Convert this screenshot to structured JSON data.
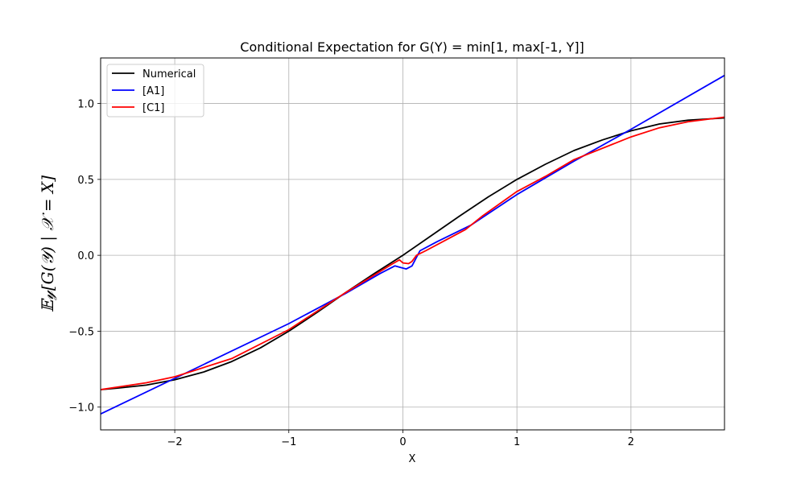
{
  "chart_data": {
    "type": "line",
    "title": "Conditional Expectation for G(Y) = min[1, max[-1, Y]]",
    "xlabel": "X",
    "ylabel": "𝔼𝓎[G(𝒴) | 𝒳 = X]",
    "xlim": [
      -2.65,
      2.82
    ],
    "ylim": [
      -1.15,
      1.3
    ],
    "grid": true,
    "legend_position": "top-left",
    "x_ticks": [
      -2,
      -1,
      0,
      1,
      2
    ],
    "x_tick_labels": [
      "−2",
      "−1",
      "0",
      "1",
      "2"
    ],
    "y_ticks": [
      -1.0,
      -0.5,
      0.0,
      0.5,
      1.0
    ],
    "y_tick_labels": [
      "−1.0",
      "−0.5",
      "0.0",
      "0.5",
      "1.0"
    ],
    "series": [
      {
        "name": "Numerical",
        "color": "#000000",
        "x": [
          -2.65,
          -2.5,
          -2.25,
          -2.0,
          -1.75,
          -1.5,
          -1.25,
          -1.0,
          -0.75,
          -0.5,
          -0.25,
          0.0,
          0.25,
          0.5,
          0.75,
          1.0,
          1.25,
          1.5,
          1.75,
          2.0,
          2.25,
          2.5,
          2.82
        ],
        "y": [
          -0.885,
          -0.875,
          -0.855,
          -0.82,
          -0.77,
          -0.7,
          -0.61,
          -0.5,
          -0.375,
          -0.245,
          -0.12,
          0.0,
          0.13,
          0.26,
          0.385,
          0.5,
          0.6,
          0.69,
          0.76,
          0.82,
          0.865,
          0.89,
          0.905
        ]
      },
      {
        "name": "[A1]",
        "color": "#0000ff",
        "x": [
          -2.65,
          -1.0,
          -0.5,
          -0.2,
          -0.07,
          -0.02,
          0.03,
          0.08,
          0.15,
          0.3,
          0.6,
          1.0,
          1.5,
          2.0,
          2.82
        ],
        "y": [
          -1.045,
          -0.45,
          -0.25,
          -0.12,
          -0.07,
          -0.08,
          -0.09,
          -0.07,
          0.03,
          0.09,
          0.2,
          0.4,
          0.62,
          0.83,
          1.185
        ]
      },
      {
        "name": "[C1]",
        "color": "#ff0000",
        "x": [
          -2.65,
          -2.25,
          -2.0,
          -1.5,
          -1.0,
          -0.5,
          -0.25,
          -0.1,
          -0.03,
          0.0,
          0.05,
          0.08,
          0.12,
          0.2,
          0.4,
          0.55,
          0.7,
          1.0,
          1.25,
          1.5,
          2.0,
          2.25,
          2.5,
          2.82
        ],
        "y": [
          -0.885,
          -0.84,
          -0.8,
          -0.68,
          -0.49,
          -0.245,
          -0.13,
          -0.06,
          -0.03,
          -0.05,
          -0.055,
          -0.04,
          0.0,
          0.03,
          0.11,
          0.17,
          0.26,
          0.42,
          0.52,
          0.63,
          0.78,
          0.84,
          0.88,
          0.91
        ]
      }
    ]
  }
}
